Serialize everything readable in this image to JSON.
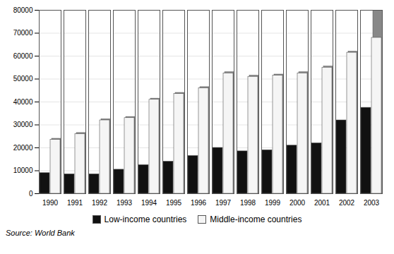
{
  "chart_data": {
    "type": "bar",
    "categories": [
      "1990",
      "1991",
      "1992",
      "1993",
      "1994",
      "1995",
      "1996",
      "1997",
      "1998",
      "1999",
      "2000",
      "2001",
      "2002",
      "2003"
    ],
    "series": [
      {
        "name": "Low-income countries",
        "color": "#111111",
        "values": [
          9000,
          8500,
          8500,
          10500,
          12500,
          14000,
          16500,
          20000,
          18500,
          19000,
          21000,
          22000,
          32000,
          37500
        ]
      },
      {
        "name": "Middle-income countries",
        "color": "#f5f5f5",
        "values": [
          23500,
          26000,
          32000,
          33000,
          41000,
          43500,
          46000,
          52500,
          51000,
          51500,
          52500,
          55000,
          61500,
          68000
        ],
        "shadow": [
          24000,
          26500,
          32500,
          33500,
          41500,
          44000,
          46500,
          53000,
          51500,
          52000,
          53000,
          55500,
          62000,
          80000
        ]
      }
    ],
    "ylim": [
      0,
      80000
    ],
    "yticks": [
      0,
      10000,
      20000,
      30000,
      40000,
      50000,
      60000,
      70000,
      80000
    ],
    "grid": true,
    "legend": "bottom",
    "caption": "Source: World Bank"
  }
}
